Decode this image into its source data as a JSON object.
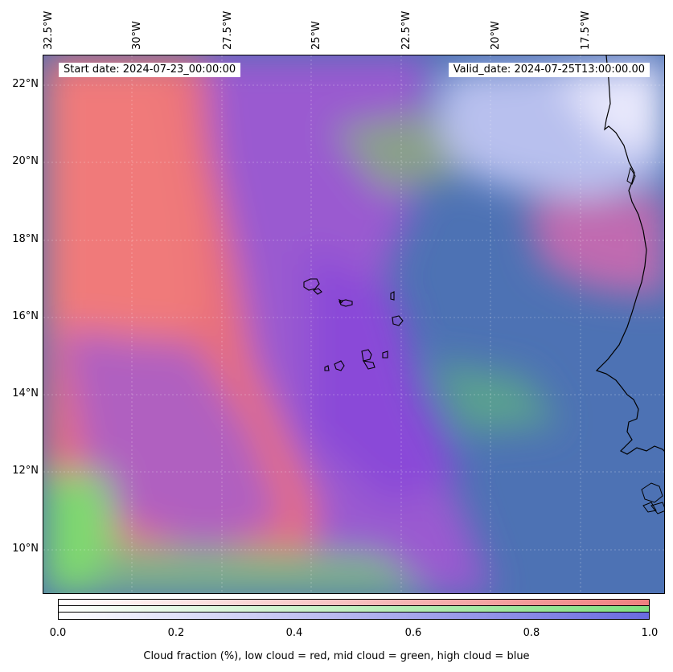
{
  "map": {
    "start_date_text": "Start date: 2024-07-23_00:00:00",
    "valid_date_text": "Valid_date: 2024-07-25T13:00:00.00",
    "lon_labels": [
      "32.5°W",
      "30°W",
      "27.5°W",
      "25°W",
      "22.5°W",
      "20°W",
      "17.5°W"
    ],
    "lat_labels": [
      "22°N",
      "20°N",
      "18°N",
      "16°N",
      "14°N",
      "12°N",
      "10°N"
    ],
    "layers": {
      "low_cloud_color": "#f08080",
      "mid_cloud_color": "#80e080",
      "high_cloud_color": "#6a6ae0"
    }
  },
  "colorbar": {
    "ticks": [
      "0.0",
      "0.2",
      "0.4",
      "0.6",
      "0.8",
      "1.0"
    ],
    "label": "Cloud fraction (%), low cloud = red, mid cloud = green, high cloud = blue"
  }
}
